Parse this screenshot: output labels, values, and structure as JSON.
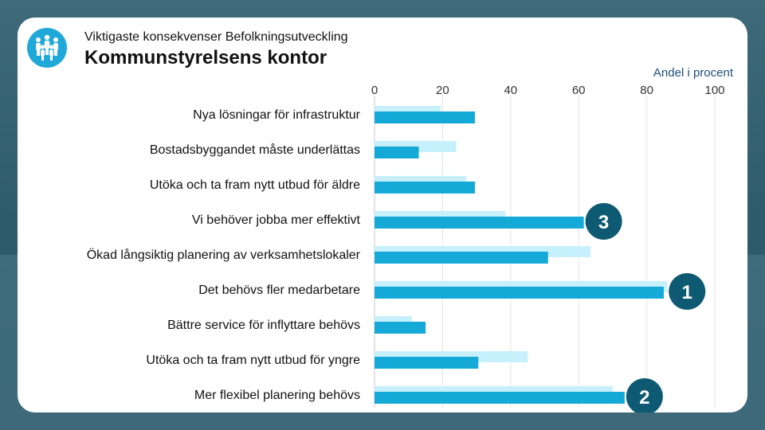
{
  "header": {
    "subtitle": "Viktigaste konsekvenser Befolkningsutveckling",
    "title": "Kommunstyrelsens kontor",
    "logo_icon": "people-group-icon"
  },
  "colors": {
    "series_current": "#15a9d8",
    "series_previous": "#c6f0fb",
    "rank_badge": "#0e5a72",
    "logo": "#1fa8d8"
  },
  "chart_data": {
    "type": "bar",
    "orientation": "horizontal",
    "xlabel": "Andel i procent",
    "ylabel": "",
    "xlim": [
      0,
      100
    ],
    "xticks": [
      0,
      20,
      40,
      60,
      80,
      100
    ],
    "grid": true,
    "categories": [
      "Nya lösningar för infrastruktur",
      "Bostadsbyggandet måste underlättas",
      "Utöka och ta fram nytt utbud för äldre",
      "Vi behöver jobba mer effektivt",
      "Ökad långsiktig planering av verksamhetslokaler",
      "Det behövs fler medarbetare",
      "Bättre service för inflyttare behövs",
      "Utöka och ta fram nytt utbud för yngre",
      "Mer flexibel planering behövs"
    ],
    "series": [
      {
        "values": [
          19.5,
          24,
          27,
          38.5,
          63.5,
          86,
          11,
          45,
          70
        ]
      },
      {
        "values": [
          29.5,
          13,
          29.5,
          61.5,
          51,
          85,
          15,
          30.5,
          73.5
        ]
      }
    ],
    "rank_badges": [
      {
        "category_index": 3,
        "label": "3"
      },
      {
        "category_index": 5,
        "label": "1"
      },
      {
        "category_index": 8,
        "label": "2"
      }
    ]
  }
}
